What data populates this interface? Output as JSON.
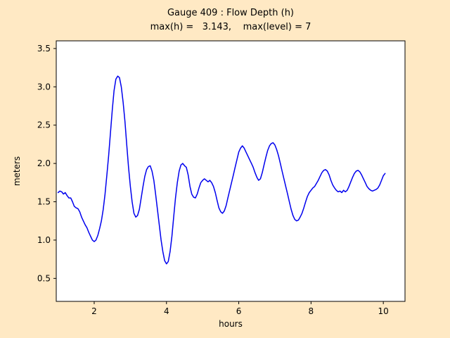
{
  "figure": {
    "background": "#ffe9c4",
    "title_line1": "Gauge 409 : Flow Depth (h)",
    "title_line2": "max(h) =   3.143,    max(level) = 7",
    "xlabel": "hours",
    "ylabel": "meters"
  },
  "chart_data": {
    "type": "line",
    "title": "Gauge 409 : Flow Depth (h)",
    "subtitle": "max(h) = 3.143, max(level) = 7",
    "xlabel": "hours",
    "ylabel": "meters",
    "xlim": [
      0.95,
      10.6
    ],
    "ylim": [
      0.2,
      3.6
    ],
    "grid": false,
    "legend": "none",
    "line_color": "#0000ee",
    "plot_bg": "#ffffff",
    "x_ticks": [
      {
        "value": 2,
        "label": "2"
      },
      {
        "value": 4,
        "label": "4"
      },
      {
        "value": 6,
        "label": "6"
      },
      {
        "value": 8,
        "label": "8"
      },
      {
        "value": 10,
        "label": "10"
      }
    ],
    "y_ticks": [
      {
        "value": 0.5,
        "label": "0.5"
      },
      {
        "value": 1.0,
        "label": "1.0"
      },
      {
        "value": 1.5,
        "label": "1.5"
      },
      {
        "value": 2.0,
        "label": "2.0"
      },
      {
        "value": 2.5,
        "label": "2.5"
      },
      {
        "value": 3.0,
        "label": "3.0"
      },
      {
        "value": 3.5,
        "label": "3.5"
      }
    ],
    "series": [
      {
        "name": "flow-depth-h",
        "x_start": 1.0,
        "x_step": 0.05,
        "values": [
          1.62,
          1.64,
          1.63,
          1.6,
          1.62,
          1.58,
          1.55,
          1.55,
          1.5,
          1.44,
          1.42,
          1.41,
          1.37,
          1.3,
          1.25,
          1.2,
          1.16,
          1.1,
          1.05,
          1.0,
          0.98,
          1.0,
          1.06,
          1.15,
          1.25,
          1.4,
          1.6,
          1.85,
          2.1,
          2.4,
          2.7,
          2.95,
          3.1,
          3.14,
          3.12,
          3.0,
          2.8,
          2.55,
          2.25,
          1.95,
          1.7,
          1.5,
          1.35,
          1.3,
          1.32,
          1.4,
          1.55,
          1.7,
          1.83,
          1.92,
          1.96,
          1.97,
          1.9,
          1.78,
          1.6,
          1.4,
          1.2,
          1.0,
          0.85,
          0.73,
          0.69,
          0.72,
          0.85,
          1.05,
          1.3,
          1.55,
          1.75,
          1.9,
          1.98,
          2.0,
          1.97,
          1.95,
          1.85,
          1.7,
          1.6,
          1.56,
          1.55,
          1.6,
          1.68,
          1.75,
          1.78,
          1.8,
          1.78,
          1.76,
          1.78,
          1.75,
          1.7,
          1.62,
          1.52,
          1.42,
          1.37,
          1.35,
          1.38,
          1.45,
          1.55,
          1.65,
          1.75,
          1.85,
          1.95,
          2.05,
          2.15,
          2.2,
          2.23,
          2.2,
          2.15,
          2.1,
          2.05,
          2.0,
          1.95,
          1.88,
          1.82,
          1.78,
          1.8,
          1.88,
          1.98,
          2.08,
          2.17,
          2.23,
          2.26,
          2.27,
          2.24,
          2.18,
          2.1,
          2.0,
          1.9,
          1.8,
          1.7,
          1.6,
          1.5,
          1.4,
          1.32,
          1.27,
          1.25,
          1.26,
          1.3,
          1.35,
          1.42,
          1.5,
          1.57,
          1.62,
          1.65,
          1.68,
          1.7,
          1.74,
          1.78,
          1.83,
          1.88,
          1.91,
          1.92,
          1.9,
          1.85,
          1.78,
          1.72,
          1.68,
          1.65,
          1.63,
          1.64,
          1.62,
          1.65,
          1.63,
          1.65,
          1.7,
          1.76,
          1.82,
          1.87,
          1.9,
          1.91,
          1.89,
          1.85,
          1.8,
          1.75,
          1.7,
          1.67,
          1.65,
          1.64,
          1.65,
          1.66,
          1.68,
          1.72,
          1.78,
          1.84,
          1.87
        ]
      }
    ]
  }
}
